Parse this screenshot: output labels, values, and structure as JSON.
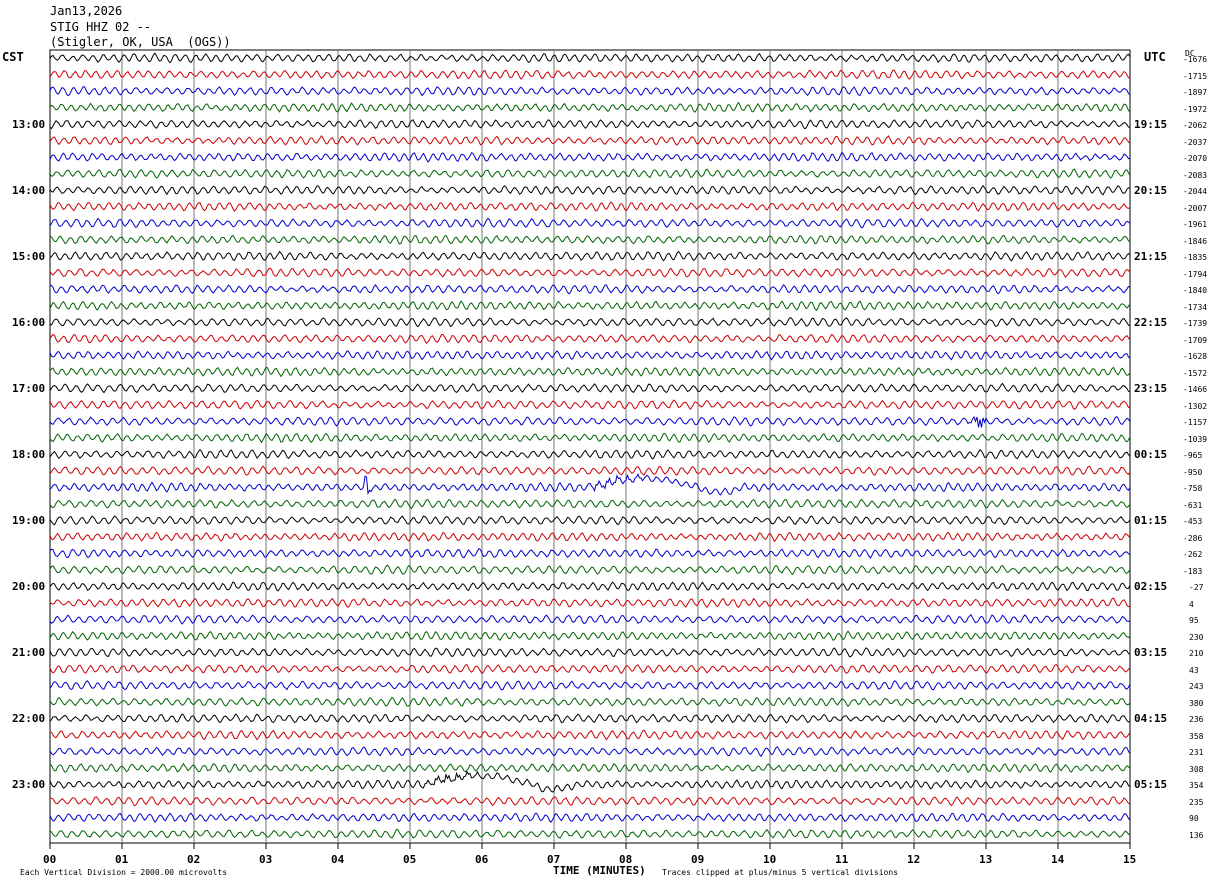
{
  "header": {
    "date": "Jan13,2026",
    "station": "STIG HHZ 02 --",
    "location": "(Stigler, OK, USA  (OGS))"
  },
  "left_tz": "CST",
  "right_tz": "UTC",
  "dc_header": "DC",
  "footer": {
    "division": "Each Vertical Division = 2000.00 microvolts",
    "xlabel": "TIME (MINUTES)",
    "clip": "Traces clipped at plus/minus 5 vertical divisions"
  },
  "colors": [
    "#000000",
    "#cc0000",
    "#0000cc",
    "#006400"
  ],
  "chart_data": {
    "type": "line",
    "xlabel": "TIME (MINUTES)",
    "x_ticks": [
      "00",
      "01",
      "02",
      "03",
      "04",
      "05",
      "06",
      "07",
      "08",
      "09",
      "10",
      "11",
      "12",
      "13",
      "14",
      "15"
    ],
    "xlim": [
      0,
      15
    ],
    "grid": true,
    "rows_per_hour": 4,
    "left_hour_labels": [
      "13:00",
      "14:00",
      "15:00",
      "16:00",
      "17:00",
      "18:00",
      "19:00",
      "20:00",
      "21:00",
      "22:00",
      "23:00"
    ],
    "right_hour_labels": [
      "19:15",
      "20:15",
      "21:15",
      "22:15",
      "23:15",
      "00:15",
      "01:15",
      "02:15",
      "03:15",
      "04:15",
      "05:15"
    ],
    "dc_offsets": [
      "-1676",
      "-1715",
      "-1897",
      "-1972",
      "-2062",
      "-2037",
      "-2070",
      "-2083",
      "-2044",
      "-2007",
      "-1961",
      "-1846",
      "-1835",
      "-1794",
      "-1840",
      "-1734",
      "-1739",
      "-1709",
      "-1628",
      "-1572",
      "-1466",
      "-1302",
      "-1157",
      "-1039",
      "-965",
      "-950",
      "-758",
      "-631",
      "-453",
      "-286",
      "-262",
      "-183",
      "-27",
      "4",
      "95",
      "230",
      "210",
      "43",
      "243",
      "380",
      "236",
      "358",
      "231",
      "308",
      "354",
      "235",
      "90",
      "136"
    ],
    "events": [
      {
        "row": 22,
        "minute": 12.9,
        "kind": "burst"
      },
      {
        "row": 26,
        "minute": 7.8,
        "kind": "teleseism"
      },
      {
        "row": 26,
        "minute": 4.4,
        "kind": "spike"
      },
      {
        "row": 44,
        "minute": 5.5,
        "kind": "teleseism"
      }
    ]
  }
}
